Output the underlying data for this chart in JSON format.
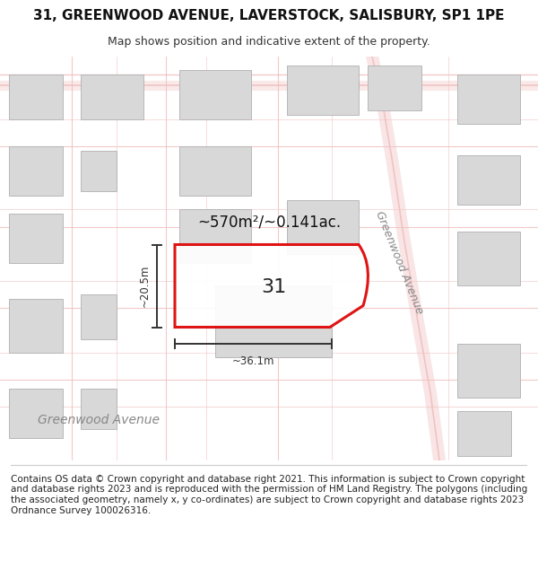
{
  "title": "31, GREENWOOD AVENUE, LAVERSTOCK, SALISBURY, SP1 1PE",
  "subtitle": "Map shows position and indicative extent of the property.",
  "footer": "Contains OS data © Crown copyright and database right 2021. This information is subject to Crown copyright and database rights 2023 and is reproduced with the permission of HM Land Registry. The polygons (including the associated geometry, namely x, y co-ordinates) are subject to Crown copyright and database rights 2023 Ordnance Survey 100026316.",
  "area_label": "~570m²/~0.141ac.",
  "plot_number": "31",
  "dim_width": "~36.1m",
  "dim_height": "~20.5m",
  "street_label_h": "Greenwood Avenue",
  "street_label_v": "Greenwood Avenue",
  "bg_color": "#ffffff",
  "map_bg": "#f5f5f5",
  "road_color": "#f0c0c0",
  "building_fill": "#d8d8d8",
  "building_edge": "#b0b0b0",
  "plot_fill": "#ffffff",
  "plot_edge": "#dd0000",
  "plot_lw": 2.2,
  "dim_color": "#333333",
  "title_fontsize": 11,
  "subtitle_fontsize": 9,
  "footer_fontsize": 7.5
}
